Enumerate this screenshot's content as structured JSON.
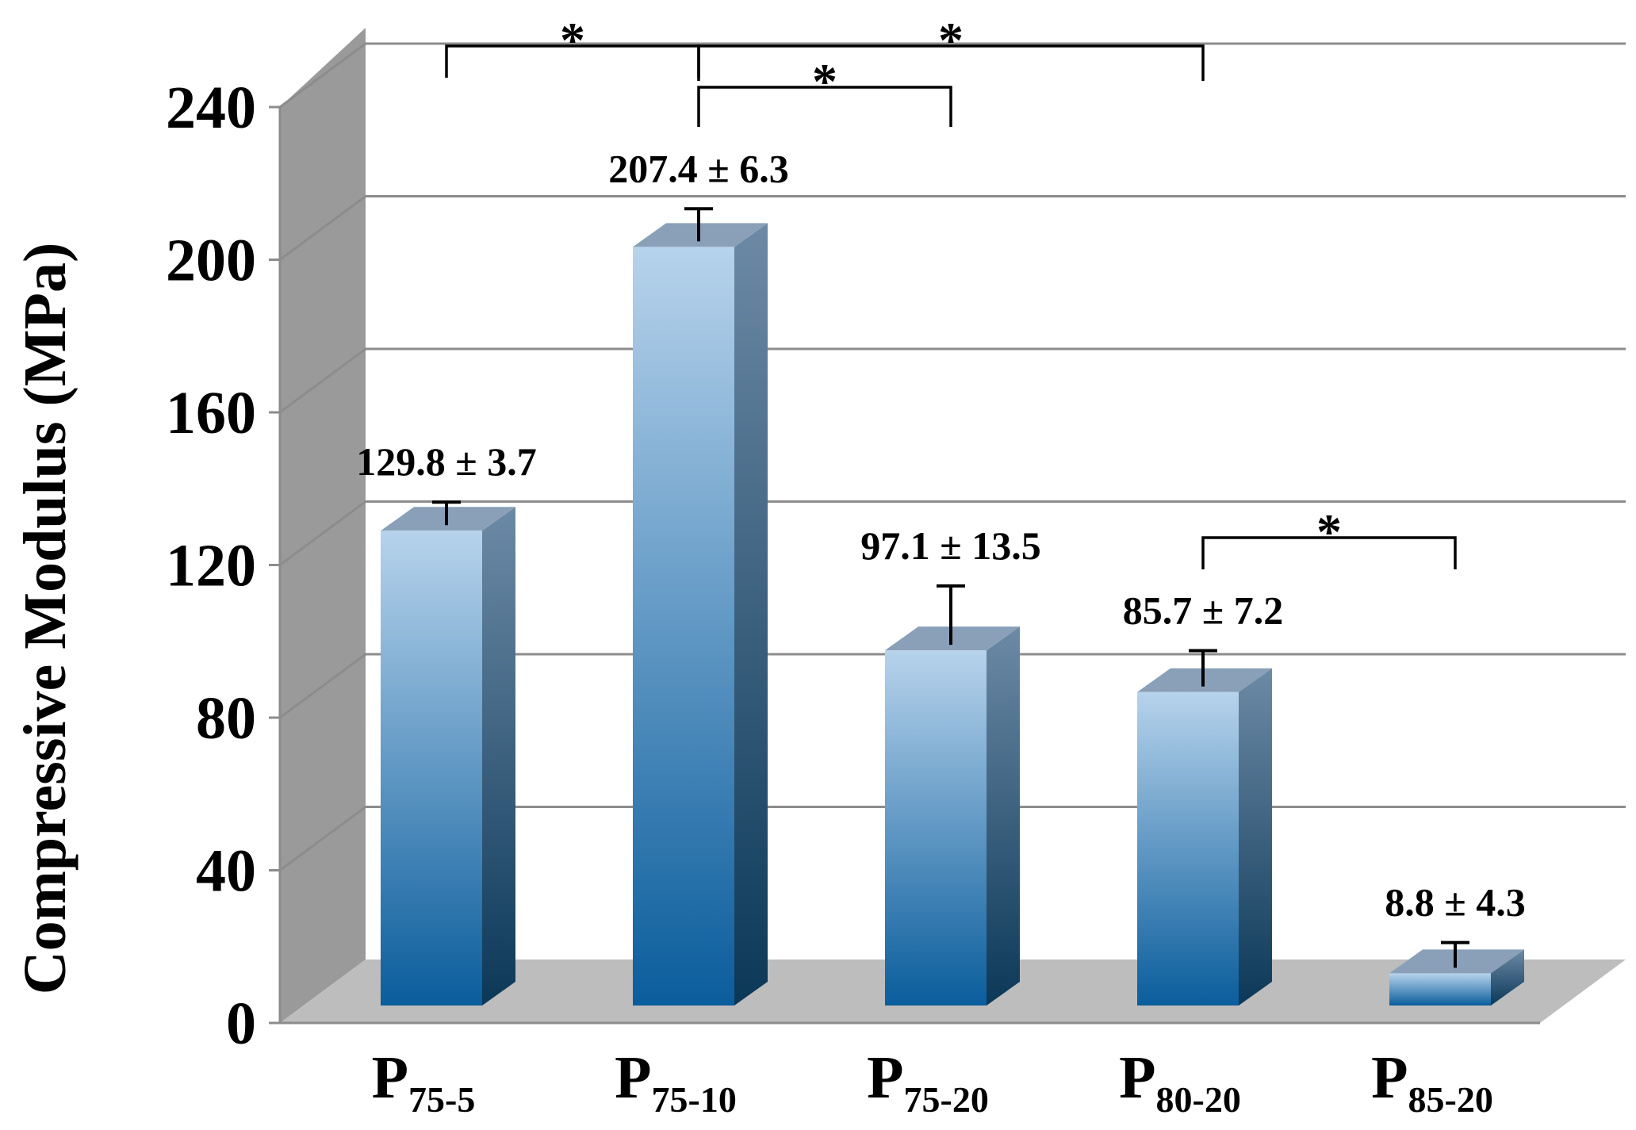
{
  "chart_data": {
    "type": "bar",
    "title": "",
    "xlabel": "",
    "ylabel": "Compressive Modulus (MPa)",
    "ylim": [
      0,
      240
    ],
    "yticks": [
      "0",
      "40",
      "80",
      "120",
      "160",
      "200",
      "240"
    ],
    "grid": true,
    "style": "3d",
    "categories": [
      {
        "main": "P",
        "sub": "75-5"
      },
      {
        "main": "P",
        "sub": "75-10"
      },
      {
        "main": "P",
        "sub": "75-20"
      },
      {
        "main": "P",
        "sub": "80-20"
      },
      {
        "main": "P",
        "sub": "85-20"
      }
    ],
    "values": [
      129.8,
      207.4,
      97.1,
      85.7,
      8.8
    ],
    "errors": [
      3.7,
      6.3,
      13.5,
      7.2,
      4.3
    ],
    "data_labels": [
      "129.8 ± 3.7",
      "207.4 ± 6.3",
      "97.1 ± 13.5",
      "85.7 ± 7.2",
      "8.8 ± 4.3"
    ],
    "significance": [
      {
        "from": 0,
        "to": 1,
        "label": "*"
      },
      {
        "from": 1,
        "to": 2,
        "label": "*"
      },
      {
        "from": 1,
        "to": 3,
        "label": "*"
      },
      {
        "from": 3,
        "to": 4,
        "label": "*"
      }
    ],
    "colors": {
      "bar_top_light": "#b7d3ec",
      "bar_bottom_dark": "#0a5d9c",
      "bar_side_light": "#6c8aa6",
      "bar_side_dark": "#0c3858",
      "bar_cap": "#8aa0b8",
      "wall": "#9a9a9a",
      "floor": "#bdbdbd",
      "grid": "#8c8c8c"
    }
  }
}
